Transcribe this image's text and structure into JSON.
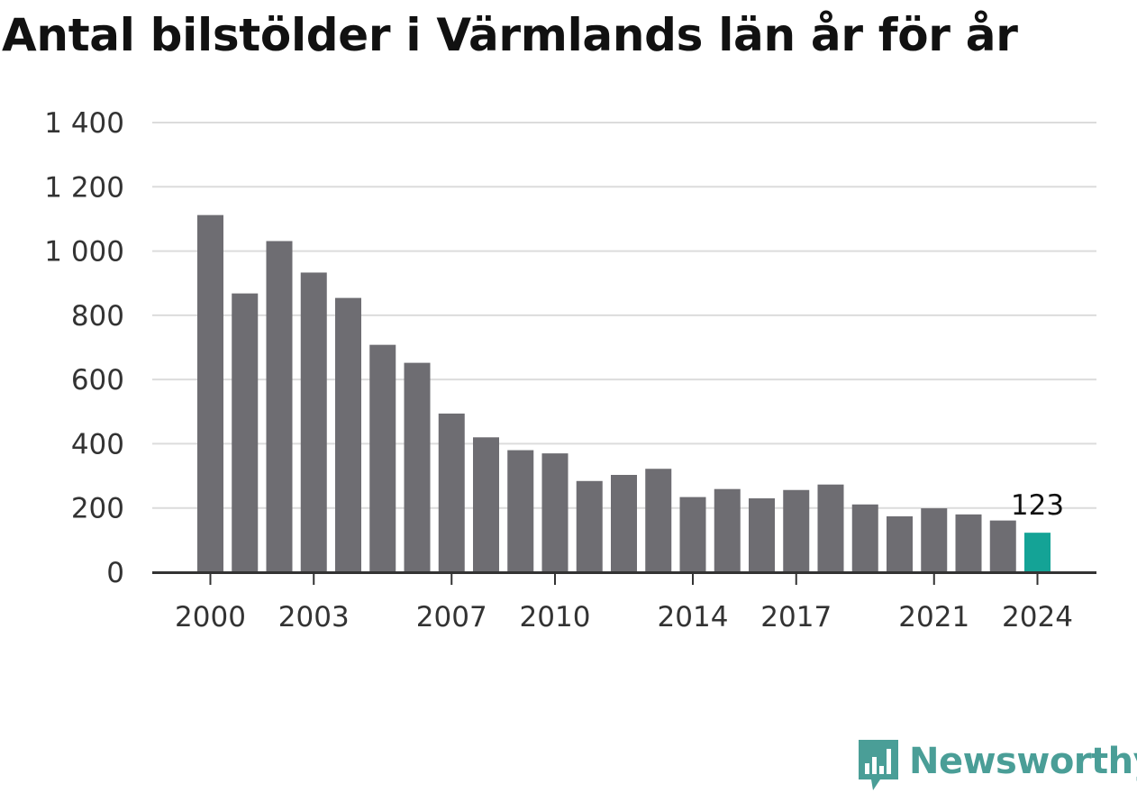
{
  "colors": {
    "bar": "#6e6d72",
    "highlight": "#14a396",
    "grid": "#dcdcdc",
    "axis": "#333333",
    "tick_text": "#333333",
    "brand": "#4a9e97"
  },
  "brand": {
    "name": "Newsworthy",
    "icon": "bar-chart-speech-bubble-icon"
  },
  "chart_data": {
    "type": "bar",
    "title": "Antal bilstölder i Värmlands län år för år",
    "xlabel": "",
    "ylabel": "",
    "categories": [
      "2000",
      "2001",
      "2002",
      "2003",
      "2004",
      "2005",
      "2006",
      "2007",
      "2008",
      "2009",
      "2010",
      "2011",
      "2012",
      "2013",
      "2014",
      "2015",
      "2016",
      "2017",
      "2018",
      "2019",
      "2020",
      "2021",
      "2022",
      "2023",
      "2024"
    ],
    "values": [
      1112,
      868,
      1031,
      933,
      854,
      708,
      652,
      494,
      420,
      380,
      370,
      284,
      303,
      322,
      234,
      259,
      230,
      256,
      273,
      211,
      174,
      199,
      180,
      161,
      123
    ],
    "highlight_index": 24,
    "highlight_label": "123",
    "ylim": [
      0,
      1400
    ],
    "yticks": [
      0,
      200,
      400,
      600,
      800,
      1000,
      1200,
      1400
    ],
    "ytick_labels": [
      "0",
      "200",
      "400",
      "600",
      "800",
      "1 000",
      "1 200",
      "1 400"
    ],
    "xtick_labels": [
      "2000",
      "2003",
      "2007",
      "2010",
      "2014",
      "2017",
      "2021",
      "2024"
    ],
    "grid": true,
    "legend": "none"
  }
}
